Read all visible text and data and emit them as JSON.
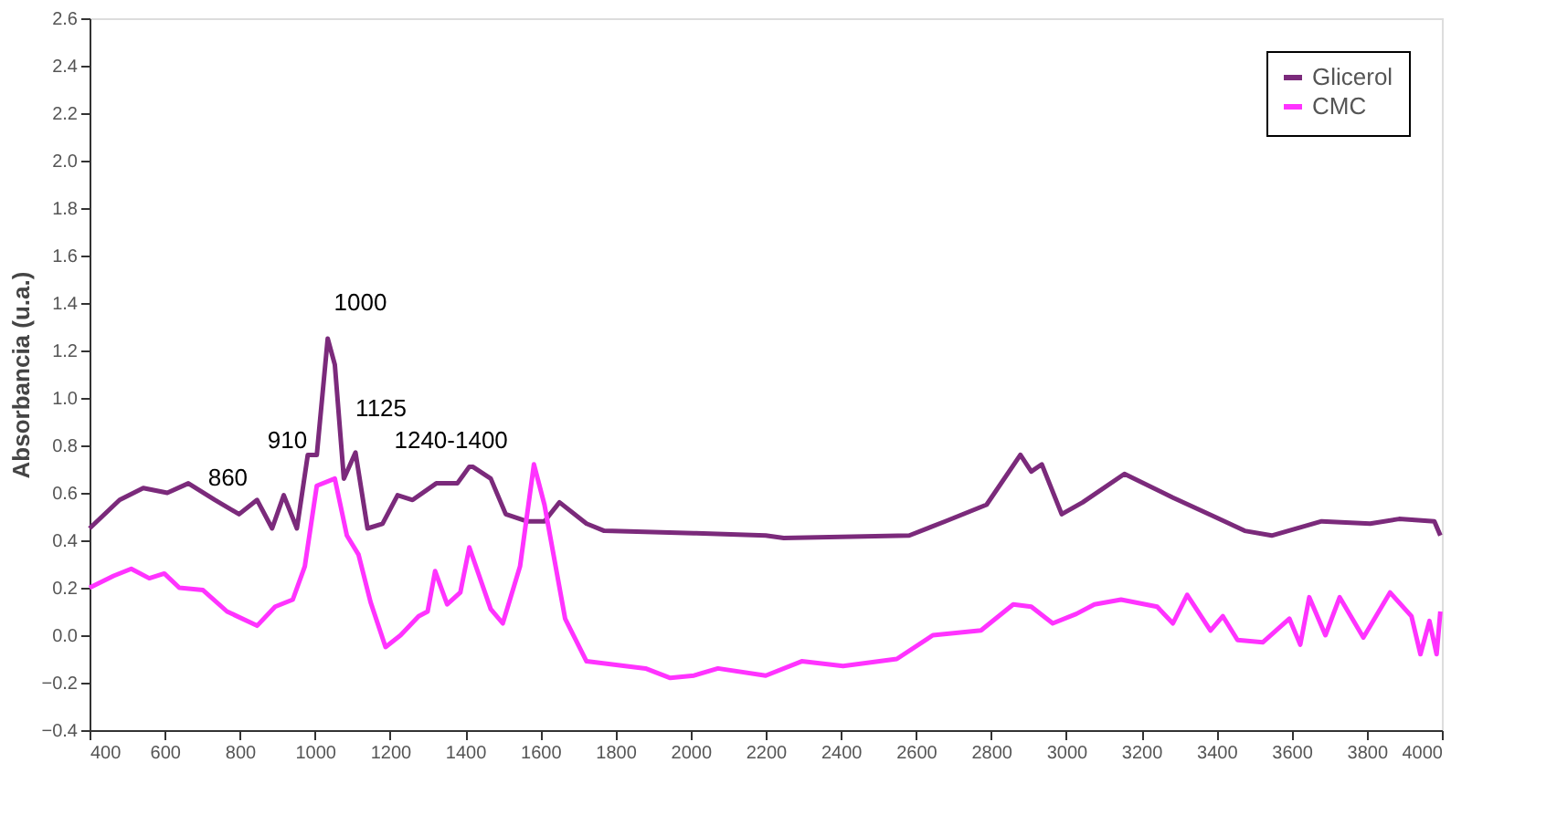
{
  "chart_data": {
    "type": "line",
    "ylabel": "Absorbancia (u.a.)",
    "xlim": [
      400,
      4000
    ],
    "xticks": [
      400,
      600,
      800,
      1000,
      1200,
      1400,
      1600,
      1800,
      2000,
      2200,
      2400,
      2600,
      2800,
      3000,
      3200,
      3400,
      3600,
      3800,
      4000
    ],
    "ylim": [
      -0.4,
      2.6
    ],
    "yticks": [
      -0.4,
      -0.2,
      {
        "value": 0,
        "label": "0.0"
      },
      0.2,
      0.4,
      0.6,
      0.8,
      {
        "value": 1,
        "label": "1.0"
      },
      1.2,
      1.4,
      1.6,
      1.8,
      {
        "value": 2,
        "label": "2.0"
      },
      2.2,
      2.4,
      2.6
    ],
    "grid": false,
    "legend": "top right",
    "marker": "none",
    "line_style": "solid",
    "annotations": [
      {
        "text": "860",
        "x": 846,
        "y": 0.57
      },
      {
        "text": "910",
        "x": 917,
        "y": 0.59
      },
      {
        "text": "1000",
        "x": 1053,
        "y": 1.14
      },
      {
        "text": "1125",
        "x": 1108,
        "y": 0.77
      },
      {
        "text": "1240-1400",
        "x": 1411,
        "y": 0.71
      }
    ],
    "series": [
      {
        "name": "Glicerol",
        "color": "#7b2a7b",
        "x": [
          400,
          480,
          543,
          607,
          663,
          734,
          798,
          846,
          886,
          917,
          952,
          981,
          1005,
          1034,
          1053,
          1077,
          1108,
          1140,
          1180,
          1220,
          1260,
          1323,
          1379,
          1411,
          1420,
          1468,
          1508,
          1564,
          1611,
          1651,
          1723,
          1770,
          2009,
          2200,
          2248,
          2582,
          2678,
          2788,
          2878,
          2907,
          2935,
          2988,
          3044,
          3155,
          3284,
          3394,
          3475,
          3547,
          3680,
          3809,
          3886,
          3980,
          3996
        ],
        "values": [
          0.45,
          0.57,
          0.62,
          0.6,
          0.64,
          0.57,
          0.51,
          0.57,
          0.45,
          0.59,
          0.45,
          0.76,
          0.76,
          1.25,
          1.14,
          0.66,
          0.77,
          0.45,
          0.47,
          0.59,
          0.57,
          0.64,
          0.64,
          0.71,
          0.71,
          0.66,
          0.51,
          0.48,
          0.48,
          0.56,
          0.47,
          0.44,
          0.43,
          0.42,
          0.41,
          0.42,
          0.48,
          0.55,
          0.76,
          0.69,
          0.72,
          0.51,
          0.56,
          0.68,
          0.58,
          0.5,
          0.44,
          0.42,
          0.48,
          0.47,
          0.49,
          0.48,
          0.42
        ]
      },
      {
        "name": "CMC",
        "color": "#ff33ff",
        "x": [
          400,
          464,
          511,
          559,
          599,
          639,
          702,
          766,
          846,
          894,
          941,
          973,
          1005,
          1053,
          1085,
          1116,
          1148,
          1188,
          1228,
          1276,
          1300,
          1320,
          1352,
          1387,
          1411,
          1468,
          1500,
          1546,
          1583,
          1611,
          1666,
          1723,
          1880,
          1946,
          2009,
          2073,
          2200,
          2296,
          2406,
          2549,
          2645,
          2773,
          2859,
          2907,
          2964,
          3027,
          3075,
          3146,
          3242,
          3284,
          3322,
          3384,
          3417,
          3456,
          3523,
          3594,
          3623,
          3647,
          3690,
          3728,
          3791,
          3862,
          3919,
          3943,
          3967,
          3986,
          3996
        ],
        "values": [
          0.2,
          0.25,
          0.28,
          0.24,
          0.26,
          0.2,
          0.19,
          0.1,
          0.04,
          0.12,
          0.15,
          0.29,
          0.63,
          0.66,
          0.42,
          0.34,
          0.14,
          -0.05,
          0.0,
          0.08,
          0.1,
          0.27,
          0.13,
          0.18,
          0.37,
          0.11,
          0.05,
          0.29,
          0.72,
          0.55,
          0.07,
          -0.11,
          -0.14,
          -0.18,
          -0.17,
          -0.14,
          -0.17,
          -0.11,
          -0.13,
          -0.1,
          0.0,
          0.02,
          0.13,
          0.12,
          0.05,
          0.09,
          0.13,
          0.15,
          0.12,
          0.05,
          0.17,
          0.02,
          0.08,
          -0.02,
          -0.03,
          0.07,
          -0.04,
          0.16,
          0.0,
          0.16,
          -0.01,
          0.18,
          0.08,
          -0.08,
          0.06,
          -0.08,
          0.1
        ]
      }
    ]
  }
}
